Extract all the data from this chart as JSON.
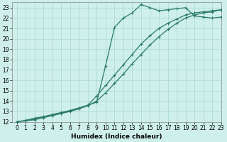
{
  "xlabel": "Humidex (Indice chaleur)",
  "bg_color": "#cff0ea",
  "grid_color": "#a8d8d0",
  "line_color": "#2a7a6a",
  "xlim": [
    -0.5,
    23
  ],
  "ylim": [
    12,
    23.5
  ],
  "xticks": [
    0,
    1,
    2,
    3,
    4,
    5,
    6,
    7,
    8,
    9,
    10,
    11,
    12,
    13,
    14,
    15,
    16,
    17,
    18,
    19,
    20,
    21,
    22,
    23
  ],
  "yticks": [
    12,
    13,
    14,
    15,
    16,
    17,
    18,
    19,
    20,
    21,
    22,
    23
  ],
  "line1_x": [
    0,
    1,
    2,
    3,
    4,
    5,
    6,
    7,
    8,
    9,
    10,
    11,
    12,
    13,
    14,
    15,
    16,
    17,
    18,
    19,
    20,
    21,
    22,
    23
  ],
  "line1_y": [
    12,
    12.15,
    12.35,
    12.5,
    12.7,
    12.9,
    13.1,
    13.35,
    13.6,
    13.9,
    17.4,
    21.1,
    22.0,
    22.5,
    23.3,
    23.0,
    22.7,
    22.8,
    22.9,
    23.0,
    22.2,
    22.1,
    22.0,
    22.1
  ],
  "line2_x": [
    0,
    1,
    2,
    3,
    4,
    5,
    6,
    7,
    8,
    9,
    10,
    11,
    12,
    13,
    14,
    15,
    16,
    17,
    18,
    19,
    20,
    21,
    22,
    23
  ],
  "line2_y": [
    12,
    12.1,
    12.25,
    12.45,
    12.65,
    12.85,
    13.05,
    13.3,
    13.6,
    14.5,
    15.5,
    16.5,
    17.5,
    18.5,
    19.5,
    20.3,
    21.0,
    21.5,
    21.9,
    22.3,
    22.5,
    22.6,
    22.7,
    22.8
  ],
  "line3_x": [
    0,
    1,
    2,
    3,
    4,
    5,
    6,
    7,
    8,
    9,
    10,
    11,
    12,
    13,
    14,
    15,
    16,
    17,
    18,
    19,
    20,
    21,
    22,
    23
  ],
  "line3_y": [
    12,
    12.1,
    12.2,
    12.4,
    12.6,
    12.8,
    13.0,
    13.25,
    13.55,
    14.0,
    14.8,
    15.7,
    16.6,
    17.6,
    18.5,
    19.4,
    20.2,
    20.9,
    21.5,
    22.0,
    22.3,
    22.5,
    22.6,
    22.8
  ],
  "marker": "+",
  "markersize": 3.5,
  "linewidth": 0.9,
  "xlabel_fontsize": 6.5,
  "tick_fontsize": 5.5
}
